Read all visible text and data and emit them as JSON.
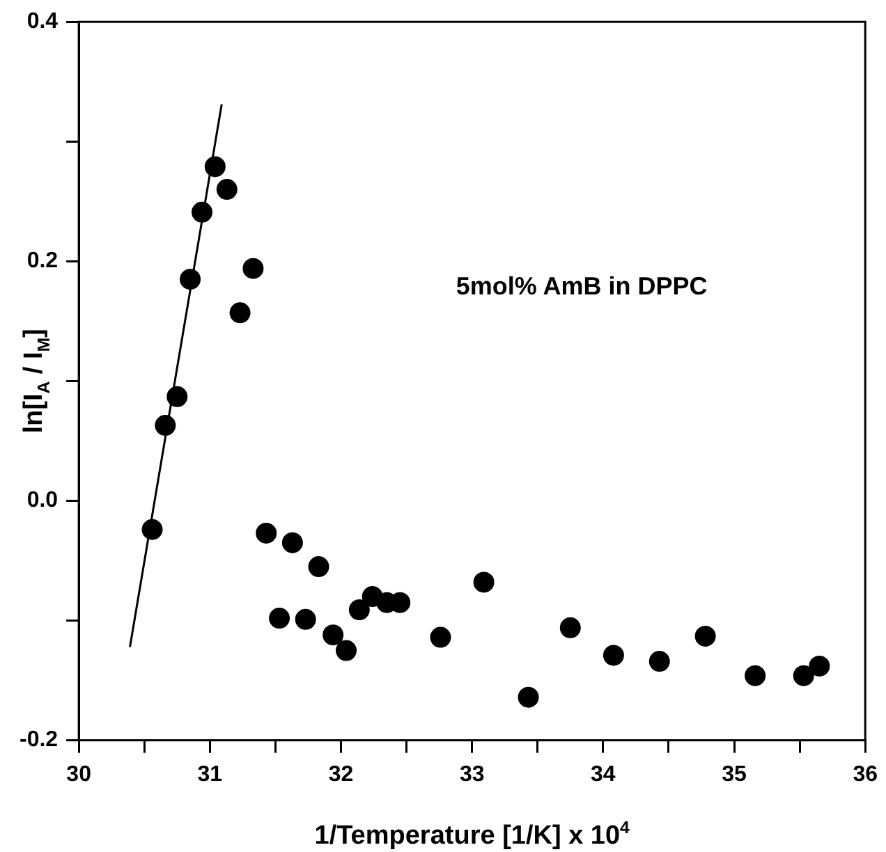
{
  "chart_data": {
    "type": "scatter",
    "xlabel": "1/Temperature [1/K] x 10$^{4}$",
    "ylabel": "ln[I$_{A}$ / I$_{M}$]",
    "annotations": [
      "5mol% AmB in DPPC"
    ],
    "xlim": [
      30,
      36
    ],
    "xticks": [
      30,
      {
        "value": 30.5,
        "label": null
      },
      31,
      {
        "value": 31.5,
        "label": null
      },
      32,
      {
        "value": 32.5,
        "label": null
      },
      33,
      {
        "value": 33.5,
        "label": null
      },
      34,
      {
        "value": 34.5,
        "label": null
      },
      35,
      {
        "value": 35.5,
        "label": null
      },
      36
    ],
    "ylim": [
      -0.2,
      0.4
    ],
    "yticks": [
      -0.2,
      {
        "value": -0.1,
        "label": null
      },
      {
        "value": 0,
        "label": "0.0"
      },
      {
        "value": 0.1,
        "label": null
      },
      0.2,
      {
        "value": 0.3,
        "label": null
      },
      0.4
    ],
    "marker": "circle",
    "grid": false,
    "legend": false,
    "series": [
      {
        "color": "#000000",
        "x": [
          31.04,
          31.13,
          30.94,
          30.85,
          31.33,
          31.23,
          30.75,
          30.66,
          30.56,
          31.43,
          31.63,
          31.83,
          31.53,
          31.73,
          31.94,
          32.04,
          32.14,
          32.24,
          32.35,
          32.45,
          32.76,
          33.09,
          33.43,
          33.75,
          34.08,
          34.43,
          34.78,
          35.16,
          35.53,
          35.65
        ],
        "values": [
          0.279,
          0.26,
          0.241,
          0.185,
          0.194,
          0.157,
          0.087,
          0.063,
          -0.024,
          -0.027,
          -0.035,
          -0.055,
          -0.098,
          -0.099,
          -0.112,
          -0.125,
          -0.091,
          -0.08,
          -0.085,
          -0.085,
          -0.114,
          -0.068,
          -0.164,
          -0.106,
          -0.129,
          -0.134,
          -0.113,
          -0.146,
          -0.146,
          -0.138
        ]
      },
      {
        "type": "line",
        "color": "#000000",
        "marker": "none",
        "x": [
          30.39,
          31.09
        ],
        "values": [
          -0.122,
          0.331
        ]
      }
    ]
  }
}
